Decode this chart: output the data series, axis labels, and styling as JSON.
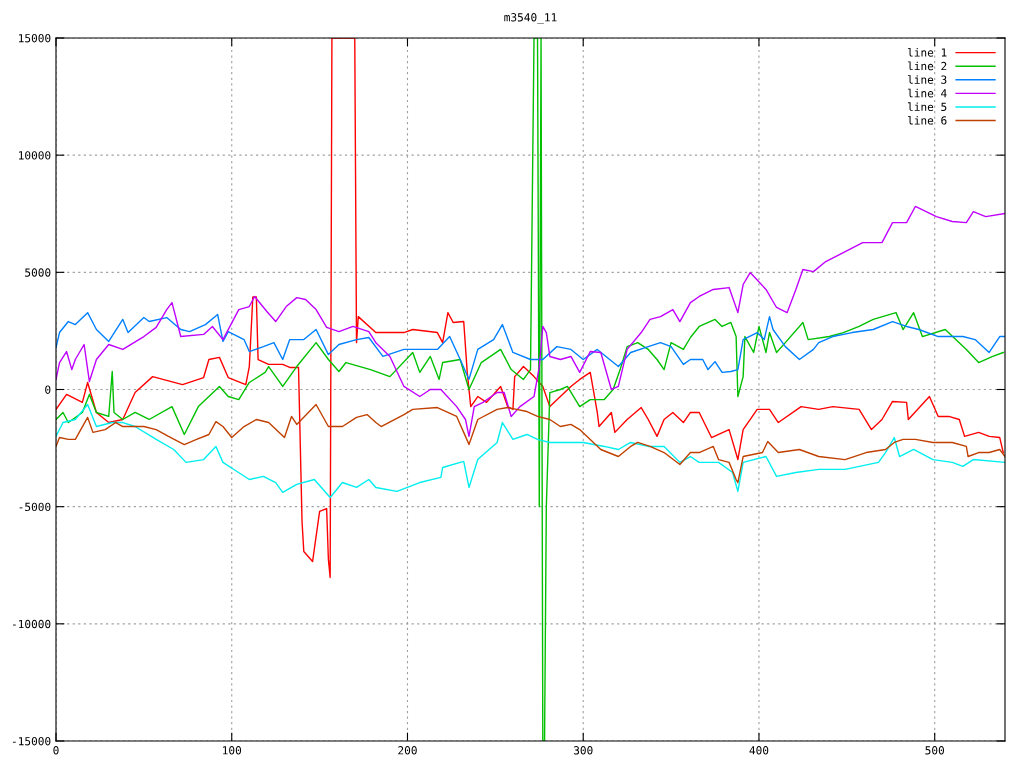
{
  "chart_data": {
    "type": "line",
    "title": "m3540_11",
    "xlim": [
      0,
      540
    ],
    "xticks": [
      0,
      100,
      200,
      300,
      400,
      500
    ],
    "ylim": [
      -15000,
      15000
    ],
    "yticks": [
      -15000,
      -10000,
      -5000,
      0,
      5000,
      10000,
      15000
    ],
    "grid": true,
    "legend": "top right",
    "line_style": "solid",
    "marker": "none",
    "series": [
      {
        "name": "line 1",
        "color": "#ff0000",
        "x": [
          0,
          6,
          15,
          18,
          23,
          30,
          38,
          45,
          55,
          72,
          84,
          87,
          93,
          98,
          108,
          110,
          112,
          114,
          115,
          121,
          129,
          133,
          138,
          140,
          141,
          146,
          150,
          154,
          155,
          156,
          157,
          170,
          171,
          172,
          182,
          198,
          203,
          217,
          220,
          223,
          226,
          232,
          234,
          236,
          240,
          245,
          253,
          257,
          260,
          261,
          266,
          272,
          277,
          281,
          287,
          293,
          298,
          304,
          308,
          309,
          316,
          318,
          325,
          333,
          337,
          342,
          346,
          351,
          357,
          361,
          366,
          373,
          383,
          388,
          391,
          399,
          406,
          411,
          424,
          434,
          442,
          457,
          464,
          470,
          476,
          484,
          485,
          497,
          502,
          508,
          514,
          517,
          525,
          531,
          537,
          539
        ],
        "values": [
          -850,
          -210,
          -550,
          300,
          -980,
          -1410,
          -1280,
          -130,
          550,
          210,
          510,
          1280,
          1370,
          510,
          210,
          980,
          3950,
          3950,
          1280,
          1070,
          1070,
          940,
          940,
          -5630,
          -6910,
          -7340,
          -5200,
          -5080,
          -7250,
          -8020,
          15000,
          15000,
          2000,
          3110,
          2430,
          2430,
          2560,
          2430,
          2000,
          3280,
          2860,
          2900,
          730,
          -730,
          -300,
          -550,
          130,
          -730,
          -850,
          550,
          980,
          550,
          130,
          -730,
          -300,
          130,
          430,
          730,
          -980,
          -1580,
          -980,
          -1830,
          -1280,
          -770,
          -1280,
          -2000,
          -1280,
          -980,
          -1410,
          -980,
          -980,
          -2050,
          -1710,
          -2990,
          -1710,
          -850,
          -850,
          -1410,
          -730,
          -850,
          -730,
          -850,
          -1710,
          -1280,
          -510,
          -550,
          -1280,
          -300,
          -1150,
          -1150,
          -1280,
          -2000,
          -1830,
          -2000,
          -2050,
          -2690
        ]
      },
      {
        "name": "line 2",
        "color": "#00c000",
        "x": [
          0,
          4,
          7,
          15,
          19,
          23,
          30,
          32,
          33,
          38,
          45,
          53,
          66,
          73,
          81,
          93,
          98,
          104,
          110,
          119,
          121,
          129,
          137,
          148,
          155,
          161,
          165,
          179,
          190,
          203,
          207,
          213,
          218,
          220,
          230,
          235,
          242,
          253,
          259,
          266,
          270,
          272,
          274,
          275,
          276,
          277,
          278,
          279,
          281,
          287,
          291,
          298,
          304,
          312,
          317,
          321,
          325,
          331,
          337,
          342,
          346,
          350,
          357,
          361,
          366,
          375,
          379,
          384,
          387,
          388,
          391,
          392,
          397,
          400,
          404,
          406,
          410,
          415,
          425,
          428,
          440,
          448,
          457,
          465,
          478,
          482,
          488,
          493,
          506,
          512,
          518,
          525,
          533,
          539
        ],
        "values": [
          -1280,
          -980,
          -1410,
          -980,
          -210,
          -980,
          -1150,
          770,
          -980,
          -1280,
          -980,
          -1280,
          -730,
          -1920,
          -730,
          130,
          -300,
          -430,
          300,
          730,
          980,
          130,
          980,
          2000,
          1280,
          770,
          1150,
          850,
          550,
          1580,
          730,
          1410,
          430,
          1150,
          1280,
          0,
          1150,
          1710,
          850,
          430,
          850,
          15000,
          15000,
          -5000,
          15000,
          -15000,
          -15000,
          -5000,
          -130,
          0,
          130,
          -730,
          -430,
          -430,
          0,
          850,
          1830,
          2000,
          1710,
          1280,
          850,
          2000,
          1710,
          2220,
          2690,
          2990,
          2690,
          2860,
          2260,
          -300,
          550,
          2260,
          1580,
          2690,
          1580,
          2430,
          1580,
          2000,
          2860,
          2130,
          2260,
          2430,
          2690,
          2990,
          3280,
          2560,
          3280,
          2260,
          2560,
          2130,
          1710,
          1150,
          1410,
          1580
        ]
      },
      {
        "name": "line 3",
        "color": "#0080ff",
        "x": [
          0,
          2,
          7,
          11,
          18,
          23,
          30,
          38,
          41,
          50,
          53,
          63,
          71,
          76,
          85,
          92,
          95,
          98,
          107,
          110,
          118,
          124,
          129,
          133,
          141,
          148,
          155,
          161,
          171,
          178,
          186,
          198,
          207,
          217,
          224,
          230,
          235,
          240,
          249,
          254,
          260,
          270,
          277,
          285,
          293,
          300,
          308,
          320,
          327,
          337,
          344,
          350,
          357,
          361,
          368,
          371,
          375,
          379,
          384,
          388,
          391,
          399,
          403,
          406,
          408,
          415,
          423,
          431,
          434,
          442,
          453,
          465,
          476,
          484,
          491,
          502,
          516,
          523,
          531,
          537,
          540
        ],
        "values": [
          1790,
          2430,
          2900,
          2770,
          3280,
          2560,
          2050,
          2990,
          2430,
          3070,
          2900,
          3070,
          2560,
          2470,
          2770,
          3200,
          2050,
          2470,
          2130,
          1620,
          1830,
          2000,
          1280,
          2130,
          2130,
          2560,
          1490,
          1920,
          2130,
          2220,
          1410,
          1710,
          1710,
          1710,
          2260,
          1280,
          430,
          1710,
          2130,
          2770,
          1580,
          1280,
          1280,
          1830,
          1710,
          1280,
          1710,
          980,
          1580,
          1830,
          2000,
          1830,
          1070,
          1280,
          1280,
          850,
          1190,
          730,
          770,
          850,
          2130,
          2430,
          2130,
          3110,
          2560,
          1830,
          1280,
          1710,
          2000,
          2260,
          2430,
          2560,
          2900,
          2690,
          2560,
          2260,
          2260,
          2130,
          1580,
          2260,
          2260
        ]
      },
      {
        "name": "line 4",
        "color": "#c000ff",
        "x": [
          0,
          2,
          6,
          9,
          11,
          16,
          19,
          23,
          30,
          38,
          50,
          57,
          63,
          66,
          71,
          84,
          89,
          95,
          104,
          110,
          113,
          120,
          125,
          131,
          137,
          142,
          148,
          154,
          161,
          169,
          178,
          182,
          190,
          198,
          207,
          213,
          219,
          228,
          233,
          235,
          238,
          243,
          251,
          255,
          259,
          264,
          272,
          275,
          277,
          279,
          281,
          287,
          293,
          298,
          304,
          310,
          316,
          320,
          325,
          333,
          338,
          344,
          351,
          355,
          361,
          366,
          374,
          383,
          388,
          391,
          395,
          404,
          410,
          416,
          421,
          425,
          431,
          438,
          448,
          459,
          470,
          476,
          484,
          489,
          501,
          510,
          518,
          522,
          529,
          540
        ],
        "values": [
          430,
          1150,
          1620,
          850,
          1280,
          1920,
          340,
          1280,
          1920,
          1710,
          2260,
          2650,
          3410,
          3710,
          2260,
          2350,
          2690,
          2130,
          3410,
          3540,
          3970,
          3330,
          2900,
          3540,
          3920,
          3840,
          3410,
          2650,
          2470,
          2690,
          2470,
          2000,
          1410,
          130,
          -300,
          0,
          0,
          -730,
          -1280,
          -2000,
          -730,
          -550,
          -130,
          -130,
          -1150,
          -730,
          -300,
          980,
          2690,
          2430,
          1410,
          1280,
          1410,
          730,
          1620,
          1580,
          0,
          130,
          1710,
          2430,
          2990,
          3110,
          3410,
          2900,
          3710,
          3970,
          4270,
          4350,
          3280,
          4480,
          4990,
          4270,
          3500,
          3280,
          4270,
          5120,
          5030,
          5460,
          5840,
          6270,
          6270,
          7120,
          7120,
          7810,
          7380,
          7170,
          7120,
          7590,
          7380,
          7510
        ]
      },
      {
        "name": "line 5",
        "color": "#00eeee",
        "x": [
          0,
          4,
          11,
          18,
          23,
          32,
          38,
          45,
          57,
          67,
          74,
          84,
          91,
          95,
          103,
          110,
          118,
          125,
          129,
          137,
          147,
          156,
          163,
          171,
          178,
          182,
          194,
          207,
          219,
          220,
          232,
          235,
          240,
          251,
          254,
          260,
          268,
          274,
          281,
          293,
          300,
          312,
          320,
          327,
          337,
          346,
          355,
          361,
          366,
          377,
          385,
          388,
          391,
          404,
          410,
          421,
          434,
          449,
          468,
          472,
          477,
          480,
          488,
          499,
          510,
          516,
          522,
          540
        ],
        "values": [
          -2000,
          -1410,
          -1280,
          -640,
          -1580,
          -1410,
          -1410,
          -1580,
          -2130,
          -2560,
          -3110,
          -2990,
          -2430,
          -3110,
          -3500,
          -3840,
          -3710,
          -3970,
          -4390,
          -4050,
          -3840,
          -4610,
          -3970,
          -4180,
          -3840,
          -4180,
          -4350,
          -3970,
          -3750,
          -3330,
          -3070,
          -4180,
          -2990,
          -2260,
          -1410,
          -2130,
          -1920,
          -2130,
          -2260,
          -2260,
          -2260,
          -2430,
          -2560,
          -2260,
          -2430,
          -2430,
          -3110,
          -2860,
          -3110,
          -3110,
          -3540,
          -4350,
          -3110,
          -2860,
          -3710,
          -3540,
          -3410,
          -3410,
          -3110,
          -2690,
          -2050,
          -2860,
          -2560,
          -2990,
          -3110,
          -3280,
          -2990,
          -3110
        ]
      },
      {
        "name": "line 6",
        "color": "#c04000",
        "x": [
          0,
          2,
          7,
          11,
          18,
          21,
          28,
          34,
          38,
          50,
          57,
          64,
          73,
          80,
          87,
          91,
          95,
          100,
          107,
          114,
          121,
          130,
          134,
          137,
          148,
          155,
          163,
          171,
          177,
          182,
          185,
          198,
          203,
          217,
          228,
          233,
          235,
          240,
          251,
          257,
          268,
          274,
          281,
          287,
          293,
          298,
          304,
          310,
          320,
          327,
          331,
          338,
          346,
          355,
          361,
          366,
          374,
          377,
          383,
          387,
          388,
          391,
          402,
          405,
          411,
          423,
          434,
          449,
          461,
          472,
          477,
          482,
          489,
          499,
          510,
          518,
          519,
          525,
          531,
          537,
          540
        ],
        "values": [
          -2430,
          -2050,
          -2130,
          -2130,
          -1190,
          -1830,
          -1710,
          -1410,
          -1580,
          -1580,
          -1710,
          -2000,
          -2350,
          -2130,
          -1920,
          -1370,
          -1580,
          -2050,
          -1580,
          -1280,
          -1410,
          -2050,
          -1150,
          -1490,
          -640,
          -1580,
          -1580,
          -1190,
          -1070,
          -1410,
          -1580,
          -1070,
          -850,
          -770,
          -1150,
          -2000,
          -2350,
          -1280,
          -850,
          -770,
          -940,
          -1150,
          -1280,
          -1580,
          -1490,
          -1710,
          -2130,
          -2560,
          -2860,
          -2430,
          -2260,
          -2430,
          -2690,
          -3200,
          -2690,
          -2690,
          -2430,
          -2990,
          -3110,
          -3840,
          -3970,
          -2860,
          -2690,
          -2220,
          -2690,
          -2560,
          -2860,
          -2990,
          -2690,
          -2560,
          -2260,
          -2130,
          -2130,
          -2260,
          -2260,
          -2430,
          -2860,
          -2690,
          -2690,
          -2560,
          -2860
        ]
      }
    ]
  }
}
